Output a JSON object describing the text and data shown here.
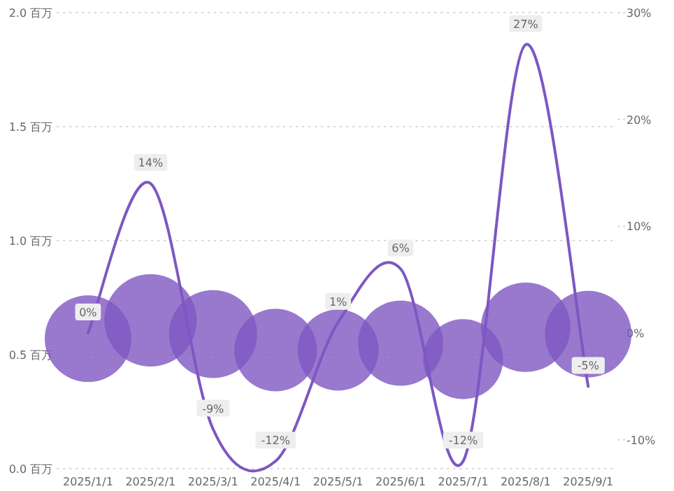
{
  "chart_data": {
    "type": "bubble",
    "categories": [
      "2025/1/1",
      "2025/2/1",
      "2025/3/1",
      "2025/4/1",
      "2025/5/1",
      "2025/6/1",
      "2025/7/1",
      "2025/8/1",
      "2025/9/1"
    ],
    "series": [
      {
        "type": "bubble",
        "color": "#7e57c2",
        "values": [
          0.57,
          0.65,
          0.59,
          0.52,
          0.52,
          0.55,
          0.48,
          0.62,
          0.59
        ],
        "sizes": [
          0.88,
          1,
          0.91,
          0.8,
          0.77,
          0.85,
          0.75,
          0.94,
          0.88
        ]
      },
      {
        "type": "line",
        "axis": "y2",
        "color": "#7e57c2",
        "values": [
          0,
          14,
          -9,
          -12,
          1,
          6,
          -12,
          27,
          -5
        ],
        "value_labels": [
          "0%",
          "14%",
          "-9%",
          "-12%",
          "1%",
          "6%",
          "-12%",
          "27%",
          "-5%"
        ]
      }
    ],
    "ylim": [
      0,
      2
    ],
    "yticks": [
      {
        "value": 0,
        "label": "0.0 百万"
      },
      {
        "value": 0.5,
        "label": "0.5 百万"
      },
      {
        "value": 1,
        "label": "1.0 百万"
      },
      {
        "value": 1.5,
        "label": "1.5 百万"
      },
      {
        "value": 2,
        "label": "2.0 百万"
      }
    ],
    "y2lim": [
      -12.7,
      30
    ],
    "y2ticks": [
      {
        "value": -10,
        "label": "-10%"
      },
      {
        "value": 0,
        "label": "0%"
      },
      {
        "value": 10,
        "label": "10%"
      },
      {
        "value": 20,
        "label": "20%"
      },
      {
        "value": 30,
        "label": "30%"
      }
    ],
    "grid": "y"
  }
}
